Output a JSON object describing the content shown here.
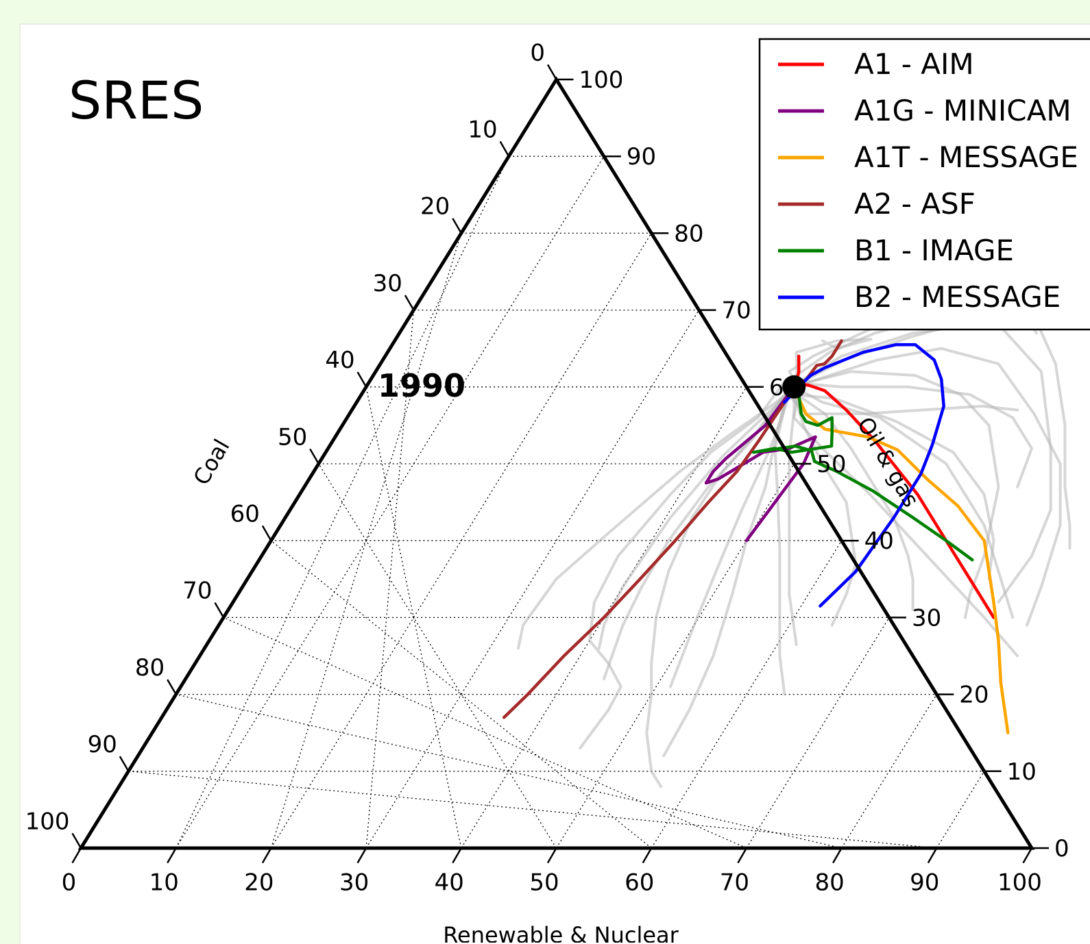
{
  "colors": {
    "page_background": "#f0fde6",
    "panel_background": "#ffffff",
    "background_scenarios": "#b4b4b4",
    "a1_aim": "#ff0000",
    "a1g_minicam": "#800080",
    "a1t_message": "#ffa500",
    "a2_asf": "#a52a2a",
    "b1_image": "#008000",
    "b2_message": "#0000ff"
  },
  "chart_data": {
    "type": "ternary-line",
    "title": "SRES",
    "axes": {
      "bottom": {
        "label": "Renewable & Nuclear",
        "ticks": [
          "0",
          "10",
          "20",
          "30",
          "40",
          "50",
          "60",
          "70",
          "80",
          "90",
          "100"
        ]
      },
      "left": {
        "label": "Coal",
        "ticks": [
          "0",
          "10",
          "20",
          "30",
          "40",
          "50",
          "60",
          "70",
          "80",
          "90",
          "100"
        ]
      },
      "right": {
        "label": "Oil & gas",
        "ticks": [
          "0",
          "10",
          "20",
          "30",
          "40",
          "50",
          "60",
          "70",
          "80",
          "90",
          "100"
        ]
      },
      "range": [
        0,
        100
      ],
      "grid": "dotted, every 10"
    },
    "start_point": {
      "label": "1990",
      "renewable_nuclear": 45,
      "oil_gas": 60
    },
    "legend": {
      "position": "top-right"
    },
    "series": [
      {
        "name": "A1 - AIM",
        "color": "#ff0000",
        "points": [
          [
            43.5,
            64
          ],
          [
            44.5,
            62
          ],
          [
            45,
            60.5
          ],
          [
            46.5,
            60.2
          ],
          [
            48.5,
            59.5
          ],
          [
            52,
            57
          ],
          [
            57,
            53
          ],
          [
            61,
            49.5
          ],
          [
            65,
            46
          ],
          [
            70,
            41
          ],
          [
            75,
            36
          ],
          [
            80,
            31
          ],
          [
            81,
            30
          ]
        ]
      },
      {
        "name": "A1G - MINICAM",
        "color": "#800080",
        "points": [
          [
            45,
            60
          ],
          [
            44.8,
            58
          ],
          [
            44.5,
            55
          ],
          [
            42.5,
            50.7
          ],
          [
            42,
            49
          ],
          [
            42,
            47.5
          ],
          [
            43,
            48
          ],
          [
            44.3,
            49.5
          ],
          [
            46,
            51.5
          ],
          [
            48.5,
            52
          ],
          [
            50.5,
            53.5
          ],
          [
            51,
            50
          ],
          [
            50.5,
            45
          ],
          [
            50,
            40
          ]
        ]
      },
      {
        "name": "A1T - MESSAGE",
        "color": "#ffa500",
        "points": [
          [
            45,
            59.5
          ],
          [
            46,
            58.8
          ],
          [
            48,
            56.5
          ],
          [
            51,
            54.5
          ],
          [
            56,
            53.5
          ],
          [
            60,
            51.8
          ],
          [
            65,
            48
          ],
          [
            70,
            44.5
          ],
          [
            75,
            40
          ],
          [
            80,
            32
          ],
          [
            83,
            27
          ],
          [
            86,
            21.5
          ],
          [
            90,
            15
          ]
        ]
      },
      {
        "name": "A2 - ASF",
        "color": "#a52a2a",
        "points": [
          [
            47,
            66
          ],
          [
            47,
            64
          ],
          [
            46.7,
            63
          ],
          [
            46,
            62.8
          ],
          [
            45.8,
            61
          ],
          [
            45.2,
            60
          ],
          [
            45,
            58
          ],
          [
            44.8,
            53
          ],
          [
            44.5,
            49
          ],
          [
            43.5,
            45
          ],
          [
            42.5,
            40
          ],
          [
            41.3,
            35
          ],
          [
            40,
            30
          ],
          [
            38.3,
            25
          ],
          [
            37,
            20
          ],
          [
            36,
            17
          ]
        ]
      },
      {
        "name": "B1 - IMAGE",
        "color": "#008000",
        "points": [
          [
            45,
            60
          ],
          [
            46,
            59
          ],
          [
            47.5,
            56.5
          ],
          [
            48.5,
            55.5
          ],
          [
            50,
            55
          ],
          [
            51,
            56
          ],
          [
            52,
            54
          ],
          [
            52.8,
            52.3
          ],
          [
            49,
            51.5
          ],
          [
            47,
            52
          ],
          [
            45,
            51.5
          ],
          [
            49,
            52.3
          ],
          [
            51,
            51.7
          ],
          [
            52,
            50.3
          ],
          [
            55,
            49
          ],
          [
            60,
            46.5
          ],
          [
            66,
            43
          ],
          [
            71,
            40
          ],
          [
            75,
            37.5
          ]
        ]
      },
      {
        "name": "B2 - MESSAGE",
        "color": "#0000ff",
        "points": [
          [
            45,
            58
          ],
          [
            45.5,
            60
          ],
          [
            46,
            61.5
          ],
          [
            47,
            62.5
          ],
          [
            50,
            64.5
          ],
          [
            53,
            65.5
          ],
          [
            55,
            65.5
          ],
          [
            58,
            63.5
          ],
          [
            60,
            61
          ],
          [
            62,
            57.5
          ],
          [
            63.3,
            52.5
          ],
          [
            64,
            48.7
          ],
          [
            64,
            43
          ],
          [
            63.5,
            36
          ],
          [
            62,
            31.5
          ]
        ]
      }
    ],
    "background_series": [
      [
        [
          43.7,
          61
        ],
        [
          43.2,
          56
        ],
        [
          40.5,
          51.5
        ],
        [
          39,
          46
        ],
        [
          37.5,
          38
        ],
        [
          38,
          32
        ],
        [
          40,
          27
        ],
        [
          43.5,
          24
        ],
        [
          46.3,
          21
        ],
        [
          46.5,
          18
        ],
        [
          46,
          13
        ]
      ],
      [
        [
          45.3,
          60.5
        ],
        [
          47,
          56
        ],
        [
          52,
          52
        ],
        [
          60,
          46
        ],
        [
          70,
          38
        ],
        [
          80,
          30
        ],
        [
          86,
          25
        ]
      ],
      [
        [
          45,
          60
        ],
        [
          47,
          61
        ],
        [
          52,
          63.5
        ],
        [
          58,
          65
        ],
        [
          65,
          63
        ],
        [
          72,
          56.5
        ],
        [
          78,
          50
        ],
        [
          82,
          42
        ],
        [
          84,
          34
        ],
        [
          85,
          29
        ]
      ],
      [
        [
          45,
          60
        ],
        [
          49,
          58
        ],
        [
          56,
          56
        ],
        [
          66,
          50
        ],
        [
          74,
          42
        ],
        [
          80,
          34
        ],
        [
          83,
          30
        ]
      ],
      [
        [
          45,
          60.5
        ],
        [
          48,
          64
        ],
        [
          54,
          67
        ],
        [
          62,
          68.5
        ],
        [
          70,
          62
        ],
        [
          76,
          52
        ],
        [
          80,
          44
        ],
        [
          81,
          38
        ],
        [
          80.5,
          32
        ]
      ],
      [
        [
          45.5,
          59
        ],
        [
          48.5,
          55
        ],
        [
          53,
          50
        ],
        [
          58,
          45
        ],
        [
          63,
          37
        ],
        [
          64,
          33
        ],
        [
          64.5,
          29
        ]
      ],
      [
        [
          44.5,
          59
        ],
        [
          44,
          54
        ],
        [
          43,
          49
        ],
        [
          42.8,
          43
        ],
        [
          43.8,
          36
        ],
        [
          45.5,
          30
        ],
        [
          48,
          24
        ],
        [
          50,
          20
        ],
        [
          52,
          15
        ],
        [
          55,
          10
        ],
        [
          57,
          8
        ]
      ],
      [
        [
          45,
          58
        ],
        [
          46.5,
          53
        ],
        [
          48.5,
          47
        ],
        [
          50,
          40
        ],
        [
          52,
          33
        ],
        [
          54,
          25
        ],
        [
          55,
          18
        ],
        [
          55.3,
          12
        ]
      ],
      [
        [
          45,
          60
        ],
        [
          46.5,
          57
        ],
        [
          49,
          51
        ],
        [
          52,
          45
        ],
        [
          55,
          39
        ],
        [
          58,
          33
        ],
        [
          62,
          26.5
        ]
      ],
      [
        [
          45,
          60.5
        ],
        [
          43.5,
          62
        ],
        [
          45,
          64
        ],
        [
          48,
          66.5
        ],
        [
          53,
          70.5
        ],
        [
          57,
          73
        ],
        [
          60,
          73
        ],
        [
          63,
          71
        ],
        [
          67,
          67
        ]
      ],
      [
        [
          45,
          60.5
        ],
        [
          50,
          60
        ],
        [
          57,
          60
        ],
        [
          64,
          59
        ],
        [
          70,
          56
        ],
        [
          74,
          52
        ],
        [
          75,
          47
        ]
      ],
      [
        [
          44.5,
          61.5
        ],
        [
          46.5,
          64.5
        ],
        [
          50,
          67
        ],
        [
          55,
          69
        ],
        [
          62,
          70
        ]
      ],
      [
        [
          44.8,
          61
        ],
        [
          43,
          64.5
        ],
        [
          46.5,
          66
        ],
        [
          50,
          66.2
        ],
        [
          47,
          65
        ],
        [
          45,
          66
        ]
      ],
      [
        [
          45,
          59.5
        ],
        [
          43.5,
          57
        ],
        [
          41.5,
          54
        ],
        [
          38.5,
          49
        ],
        [
          35,
          41
        ],
        [
          32.5,
          35
        ],
        [
          32,
          29
        ],
        [
          33,
          26
        ]
      ],
      [
        [
          45.5,
          58.5
        ],
        [
          48,
          56.5
        ],
        [
          54,
          56.5
        ],
        [
          60,
          57
        ],
        [
          66,
          57.5
        ],
        [
          70,
          57
        ]
      ],
      [
        [
          45.5,
          59
        ],
        [
          50,
          58.5
        ],
        [
          58,
          55.5
        ],
        [
          66,
          51.5
        ],
        [
          72,
          46
        ],
        [
          76,
          40
        ],
        [
          78,
          35
        ]
      ],
      [
        [
          45.2,
          58.2
        ],
        [
          46.5,
          52
        ],
        [
          47.5,
          44
        ],
        [
          48.8,
          36
        ],
        [
          50,
          29
        ],
        [
          51.5,
          21
        ]
      ],
      [
        [
          44.6,
          58.5
        ],
        [
          42,
          51
        ],
        [
          40.5,
          43
        ],
        [
          40,
          34
        ],
        [
          40.5,
          29
        ],
        [
          41.5,
          26
        ]
      ],
      [
        [
          45,
          60.2
        ],
        [
          48.5,
          63.5
        ],
        [
          54,
          66.5
        ],
        [
          60,
          69
        ],
        [
          66,
          68.8
        ],
        [
          71,
          63
        ],
        [
          76,
          55
        ],
        [
          80,
          47
        ],
        [
          83,
          42
        ],
        [
          84.5,
          39
        ]
      ],
      [
        [
          45.3,
          60.3
        ],
        [
          50,
          62
        ],
        [
          57,
          61.5
        ],
        [
          63,
          59
        ],
        [
          68,
          55
        ],
        [
          73,
          47
        ],
        [
          76,
          38
        ],
        [
          77,
          33
        ],
        [
          78,
          30
        ]
      ],
      [
        [
          45.5,
          59.2
        ],
        [
          50,
          56.5
        ],
        [
          55,
          52
        ],
        [
          60,
          47
        ],
        [
          64,
          43
        ],
        [
          68,
          38
        ],
        [
          70,
          35
        ],
        [
          72,
          31
        ]
      ],
      [
        [
          45,
          58.5
        ],
        [
          47,
          52
        ],
        [
          50,
          46.5
        ],
        [
          54,
          39
        ],
        [
          58,
          31
        ],
        [
          61,
          25
        ],
        [
          64,
          20
        ]
      ],
      [
        [
          44.7,
          59
        ],
        [
          44,
          53
        ],
        [
          42.5,
          47
        ],
        [
          41.8,
          40
        ],
        [
          42,
          34
        ],
        [
          42.5,
          29
        ],
        [
          44,
          22
        ]
      ]
    ]
  }
}
